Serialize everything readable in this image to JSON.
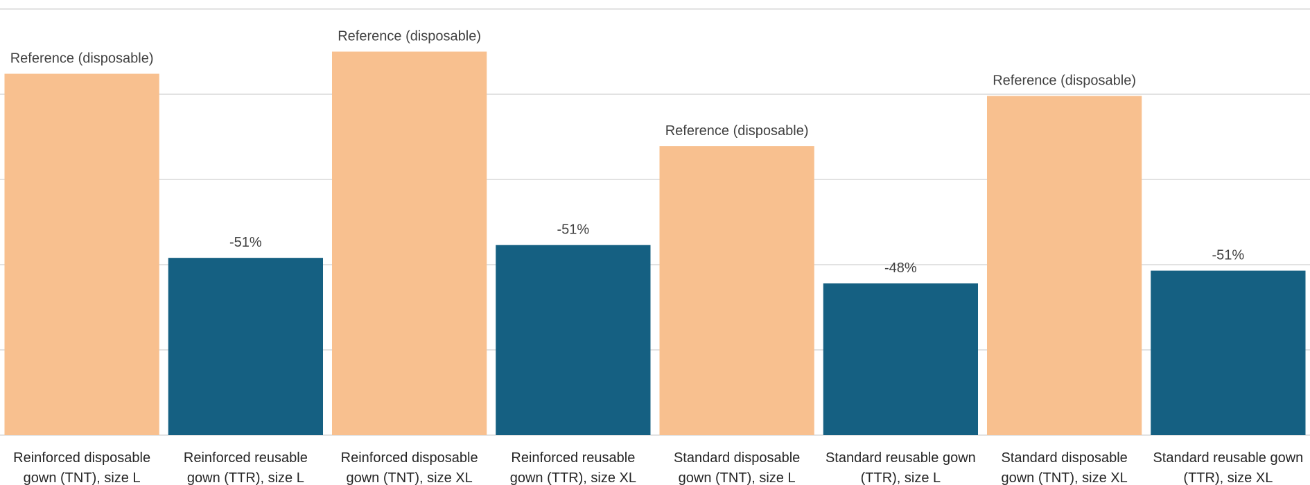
{
  "chart_data": {
    "type": "bar",
    "categories": [
      [
        "Reinforced disposable",
        "gown (TNT), size L"
      ],
      [
        "Reinforced reusable",
        "gown (TTR), size L"
      ],
      [
        "Reinforced disposable",
        "gown (TNT), size XL"
      ],
      [
        "Reinforced reusable",
        "gown (TTR), size XL"
      ],
      [
        "Standard disposable",
        "gown (TNT), size L"
      ],
      [
        "Standard reusable gown",
        "(TTR), size L"
      ],
      [
        "Standard disposable",
        "gown (TNT), size XL"
      ],
      [
        "Standard reusable gown",
        "(TTR), size XL"
      ]
    ],
    "values": [
      4.24,
      2.08,
      4.5,
      2.23,
      3.39,
      1.78,
      3.98,
      1.93
    ],
    "bar_types": [
      "disposable",
      "reusable",
      "disposable",
      "reusable",
      "disposable",
      "reusable",
      "disposable",
      "reusable"
    ],
    "data_labels": [
      "Reference (disposable)",
      "-51%",
      "Reference (disposable)",
      "-51%",
      "Reference (disposable)",
      "-48%",
      "Reference (disposable)",
      "-51%"
    ],
    "colors": {
      "disposable": "#F8C08F",
      "reusable": "#156082"
    },
    "ylim": [
      0,
      5
    ],
    "gridlines": [
      0,
      1,
      2,
      3,
      4,
      5
    ],
    "grid": true,
    "title": "",
    "xlabel": "",
    "ylabel": ""
  }
}
